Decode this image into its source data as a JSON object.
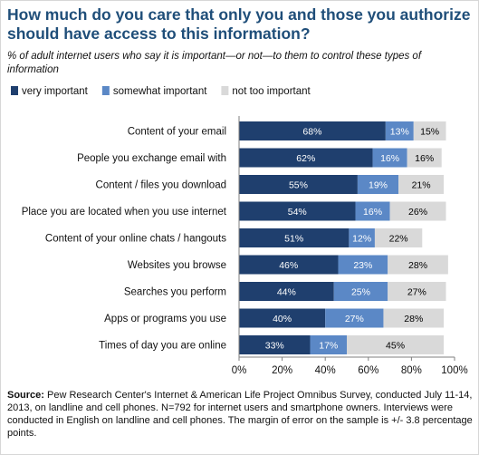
{
  "header": {
    "title": "How much do you care that only you and those you authorize should have access to this information?",
    "subtitle": "% of adult internet users who say it is important—or not—to them to control these types of information"
  },
  "footer": {
    "source_label": "Source:",
    "source_text": " Pew Research Center's Internet & American Life Project Omnibus Survey, conducted July 11-14, 2013, on landline and cell phones. N=792 for internet users and smartphone owners. Interviews were conducted in English on landline and cell phones. The margin of error on the sample is +/- 3.8 percentage points."
  },
  "colors": {
    "very_important": "#1f3f6e",
    "somewhat_important": "#5b88c6",
    "not_too_important": "#d9d9d9",
    "title": "#1f4e79"
  },
  "chart_data": {
    "type": "bar",
    "orientation": "horizontal",
    "stacked": true,
    "categories": [
      "Content of your email",
      "People you exchange email with",
      "Content / files you download",
      "Place you are located when you use internet",
      "Content of your online chats / hangouts",
      "Websites you browse",
      "Searches you perform",
      "Apps or programs you use",
      "Times of day you are online"
    ],
    "series": [
      {
        "name": "very important",
        "values": [
          68,
          62,
          55,
          54,
          51,
          46,
          44,
          40,
          33
        ]
      },
      {
        "name": "somewhat important",
        "values": [
          13,
          16,
          19,
          16,
          12,
          23,
          25,
          27,
          17
        ]
      },
      {
        "name": "not too important",
        "values": [
          15,
          16,
          21,
          26,
          22,
          28,
          27,
          28,
          45
        ]
      }
    ],
    "xlim": [
      0,
      100
    ],
    "xticks": [
      "0%",
      "20%",
      "40%",
      "60%",
      "80%",
      "100%"
    ],
    "legend_position": "top-left",
    "grid": false
  }
}
